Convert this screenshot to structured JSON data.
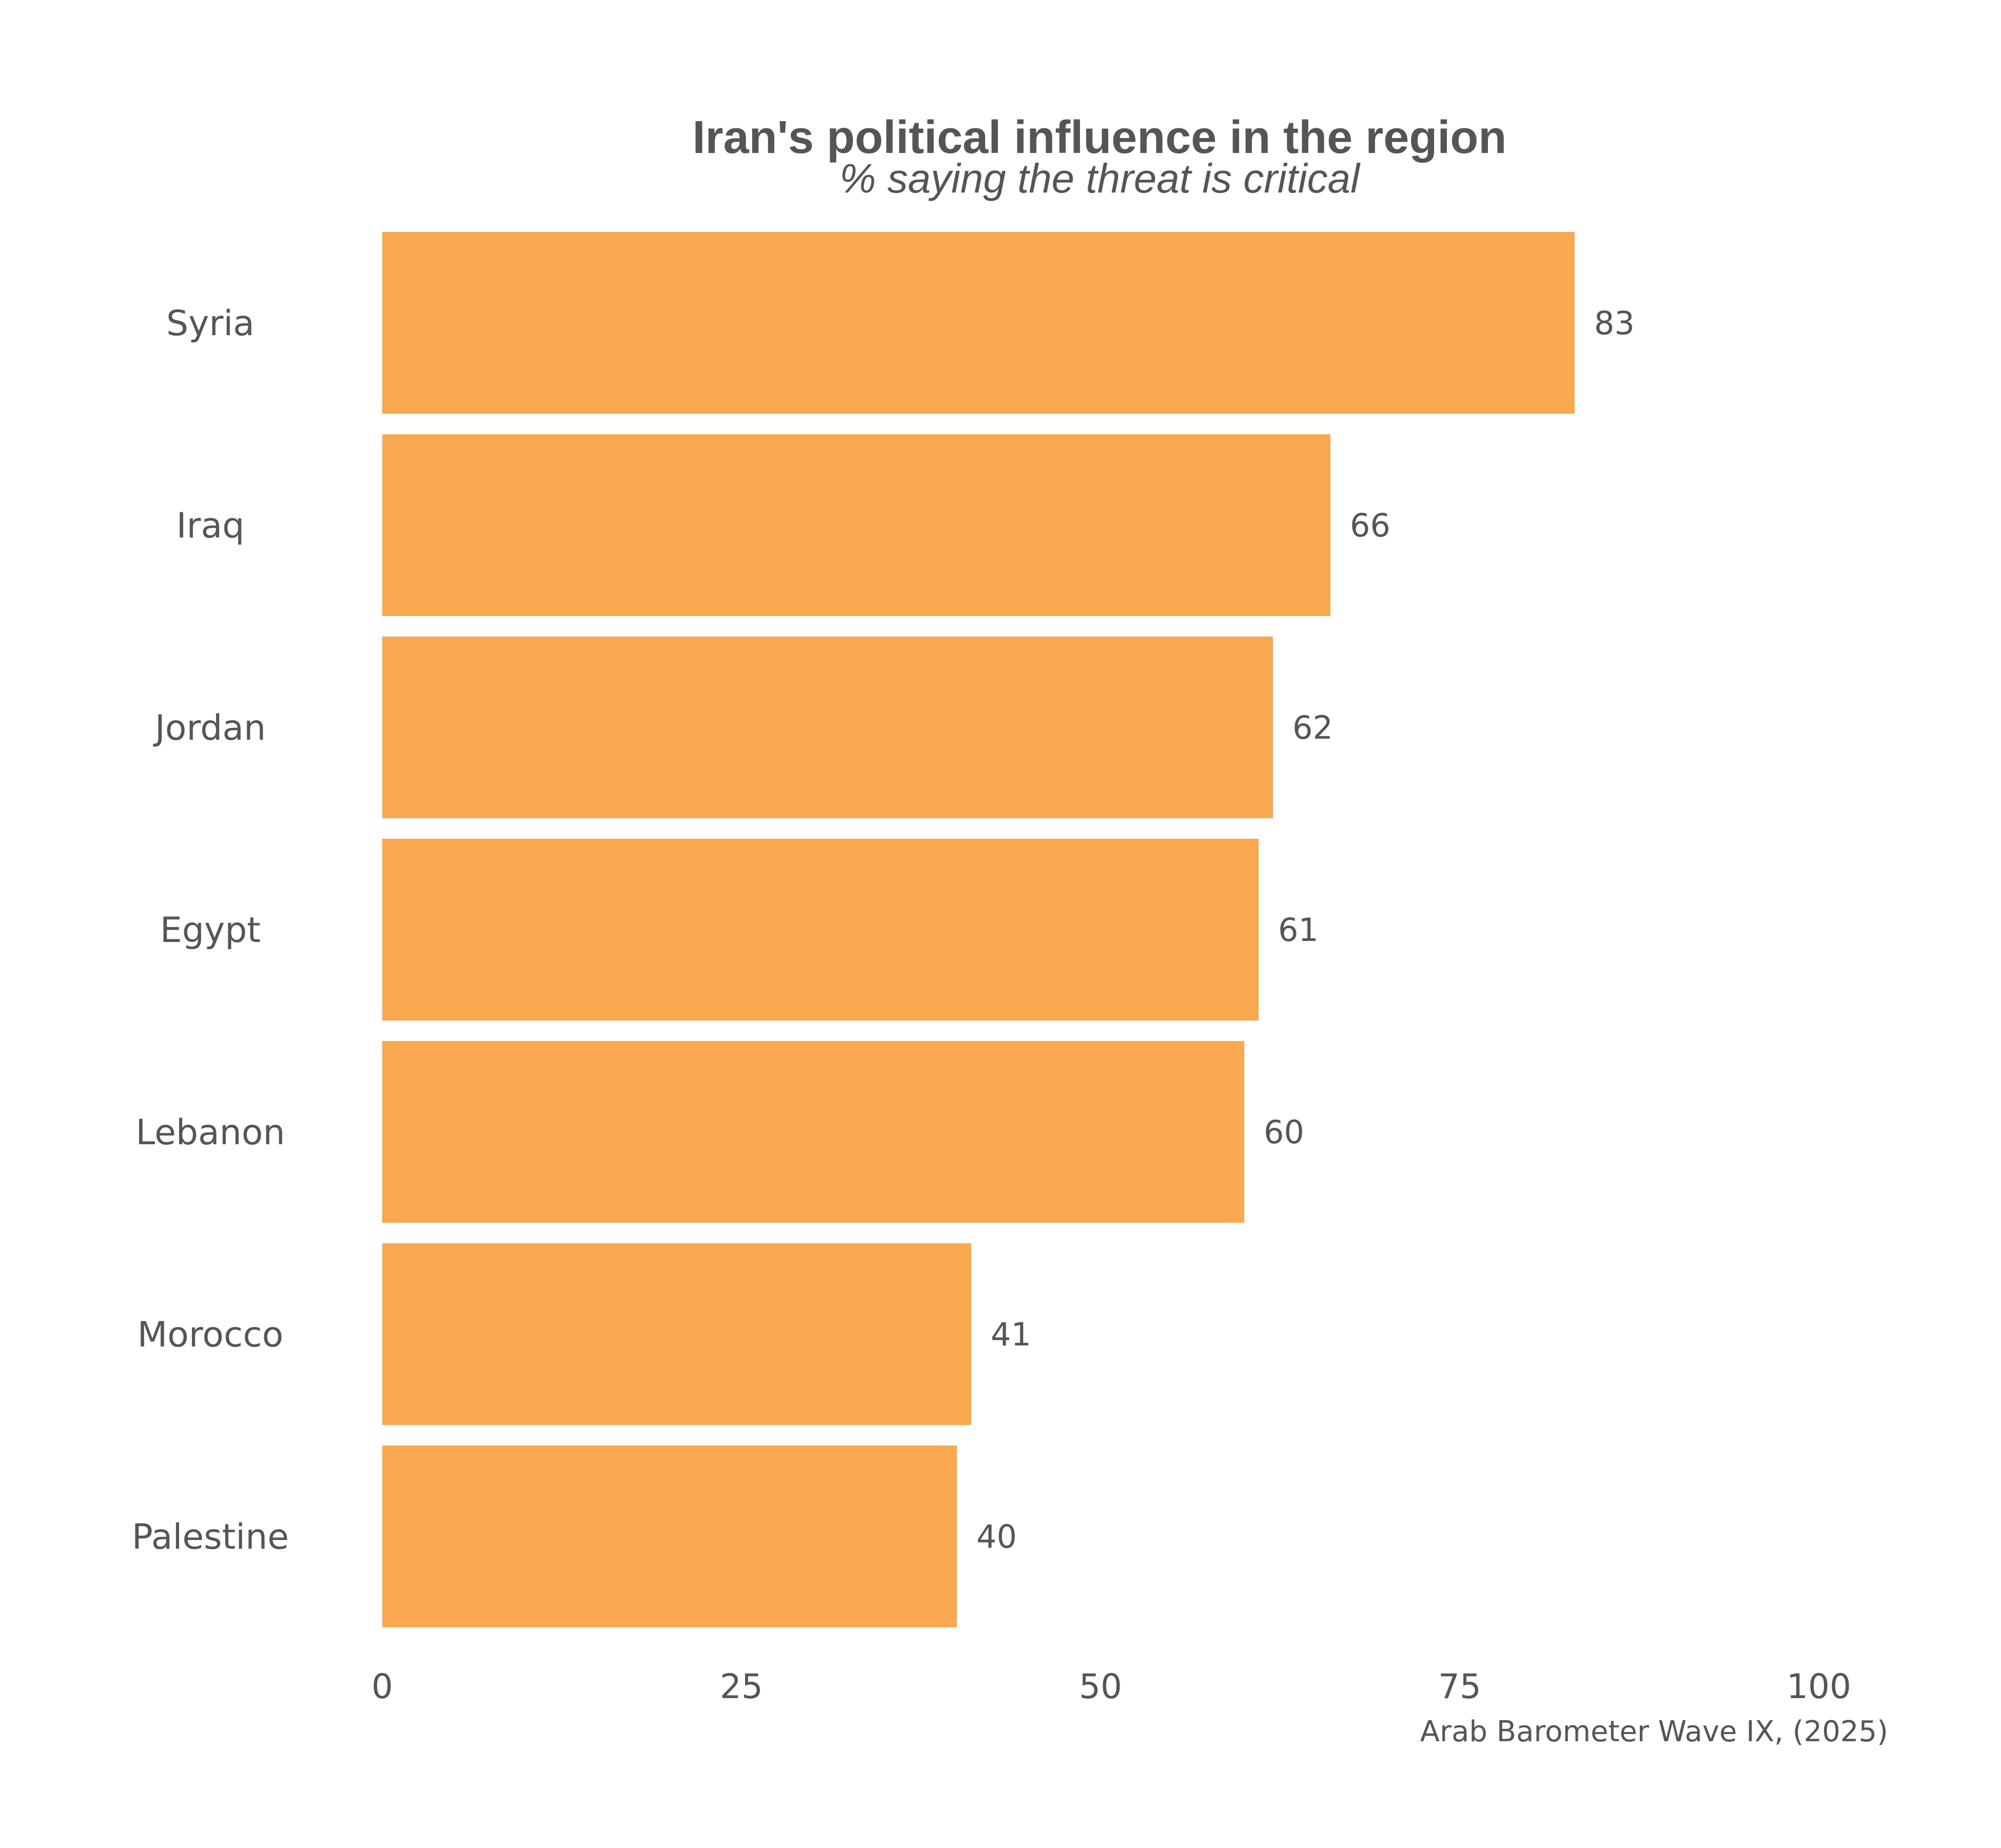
{
  "colors": {
    "bar": "#F9A850",
    "text": "#555555",
    "background": "#FFFFFF"
  },
  "chart_data": {
    "type": "bar",
    "orientation": "horizontal",
    "title": "Iran's political influence in the region",
    "subtitle": "% saying the threat is critical",
    "categories": [
      "Syria",
      "Iraq",
      "Jordan",
      "Egypt",
      "Lebanon",
      "Morocco",
      "Palestine"
    ],
    "values": [
      83,
      66,
      62,
      61,
      60,
      41,
      40
    ],
    "xlim": [
      0,
      100
    ],
    "xticks": [
      "0",
      "25",
      "50",
      "75",
      "100"
    ],
    "xlabel": "",
    "ylabel": "",
    "grid": false,
    "legend": "none",
    "caption": "Arab Barometer Wave IX, (2025)"
  }
}
